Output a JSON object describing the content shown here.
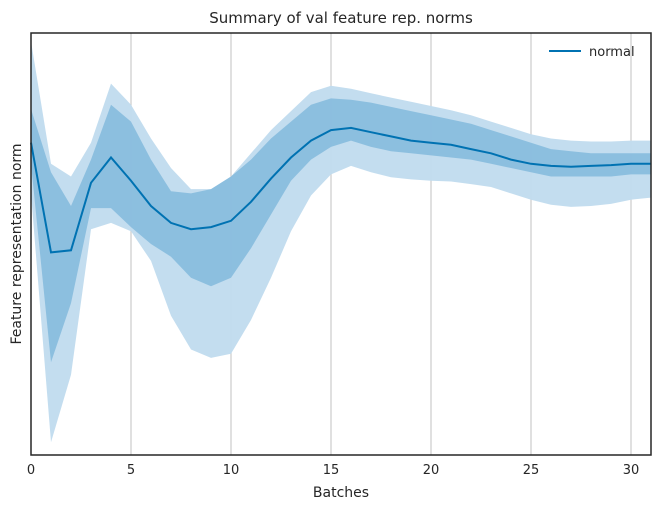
{
  "chart_data": {
    "type": "line",
    "title": "Summary of val feature rep. norms",
    "xlabel": "Batches",
    "ylabel": "Feature representation norm",
    "xlim": [
      0,
      31
    ],
    "ylim": [
      0,
      1
    ],
    "xticks": [
      0,
      5,
      10,
      15,
      20,
      25,
      30
    ],
    "xtick_labels": [
      "0",
      "5",
      "10",
      "15",
      "20",
      "25",
      "30"
    ],
    "yticks_shown": false,
    "grid": "vertical",
    "legend_position": "top-right",
    "colors": {
      "line": "#0072b2",
      "band_inner": "#7ab4da",
      "band_outer": "#c0dbee",
      "grid": "#cccccc",
      "frame": "#262626"
    },
    "series": [
      {
        "name": "normal",
        "x": [
          0,
          1,
          2,
          3,
          4,
          5,
          6,
          7,
          8,
          9,
          10,
          11,
          12,
          13,
          14,
          15,
          16,
          17,
          18,
          19,
          20,
          21,
          22,
          23,
          24,
          25,
          26,
          27,
          28,
          29,
          30,
          31
        ],
        "mean": [
          0.74,
          0.48,
          0.485,
          0.645,
          0.705,
          0.65,
          0.59,
          0.55,
          0.535,
          0.54,
          0.555,
          0.6,
          0.655,
          0.705,
          0.745,
          0.77,
          0.775,
          0.765,
          0.755,
          0.745,
          0.74,
          0.735,
          0.725,
          0.715,
          0.7,
          0.69,
          0.685,
          0.683,
          0.685,
          0.687,
          0.69,
          0.69
        ],
        "inner_band": {
          "upper": [
            0.82,
            0.67,
            0.59,
            0.7,
            0.83,
            0.79,
            0.7,
            0.625,
            0.62,
            0.63,
            0.66,
            0.7,
            0.75,
            0.79,
            0.83,
            0.845,
            0.842,
            0.835,
            0.825,
            0.815,
            0.805,
            0.795,
            0.785,
            0.77,
            0.755,
            0.74,
            0.725,
            0.72,
            0.715,
            0.715,
            0.715,
            0.715
          ],
          "lower": [
            0.69,
            0.22,
            0.36,
            0.585,
            0.585,
            0.54,
            0.5,
            0.47,
            0.42,
            0.4,
            0.42,
            0.49,
            0.57,
            0.65,
            0.7,
            0.73,
            0.745,
            0.73,
            0.72,
            0.715,
            0.71,
            0.705,
            0.7,
            0.69,
            0.68,
            0.67,
            0.66,
            0.66,
            0.66,
            0.66,
            0.665,
            0.665
          ]
        },
        "outer_band": {
          "upper": [
            0.98,
            0.69,
            0.66,
            0.74,
            0.88,
            0.83,
            0.75,
            0.68,
            0.63,
            0.63,
            0.66,
            0.715,
            0.77,
            0.815,
            0.86,
            0.875,
            0.868,
            0.857,
            0.847,
            0.837,
            0.827,
            0.817,
            0.805,
            0.79,
            0.775,
            0.76,
            0.75,
            0.745,
            0.743,
            0.743,
            0.745,
            0.745
          ],
          "lower": [
            0.62,
            0.03,
            0.19,
            0.535,
            0.55,
            0.53,
            0.46,
            0.33,
            0.25,
            0.23,
            0.24,
            0.32,
            0.42,
            0.53,
            0.615,
            0.665,
            0.685,
            0.67,
            0.658,
            0.653,
            0.65,
            0.648,
            0.642,
            0.635,
            0.62,
            0.605,
            0.593,
            0.588,
            0.59,
            0.595,
            0.605,
            0.61
          ]
        }
      }
    ]
  }
}
